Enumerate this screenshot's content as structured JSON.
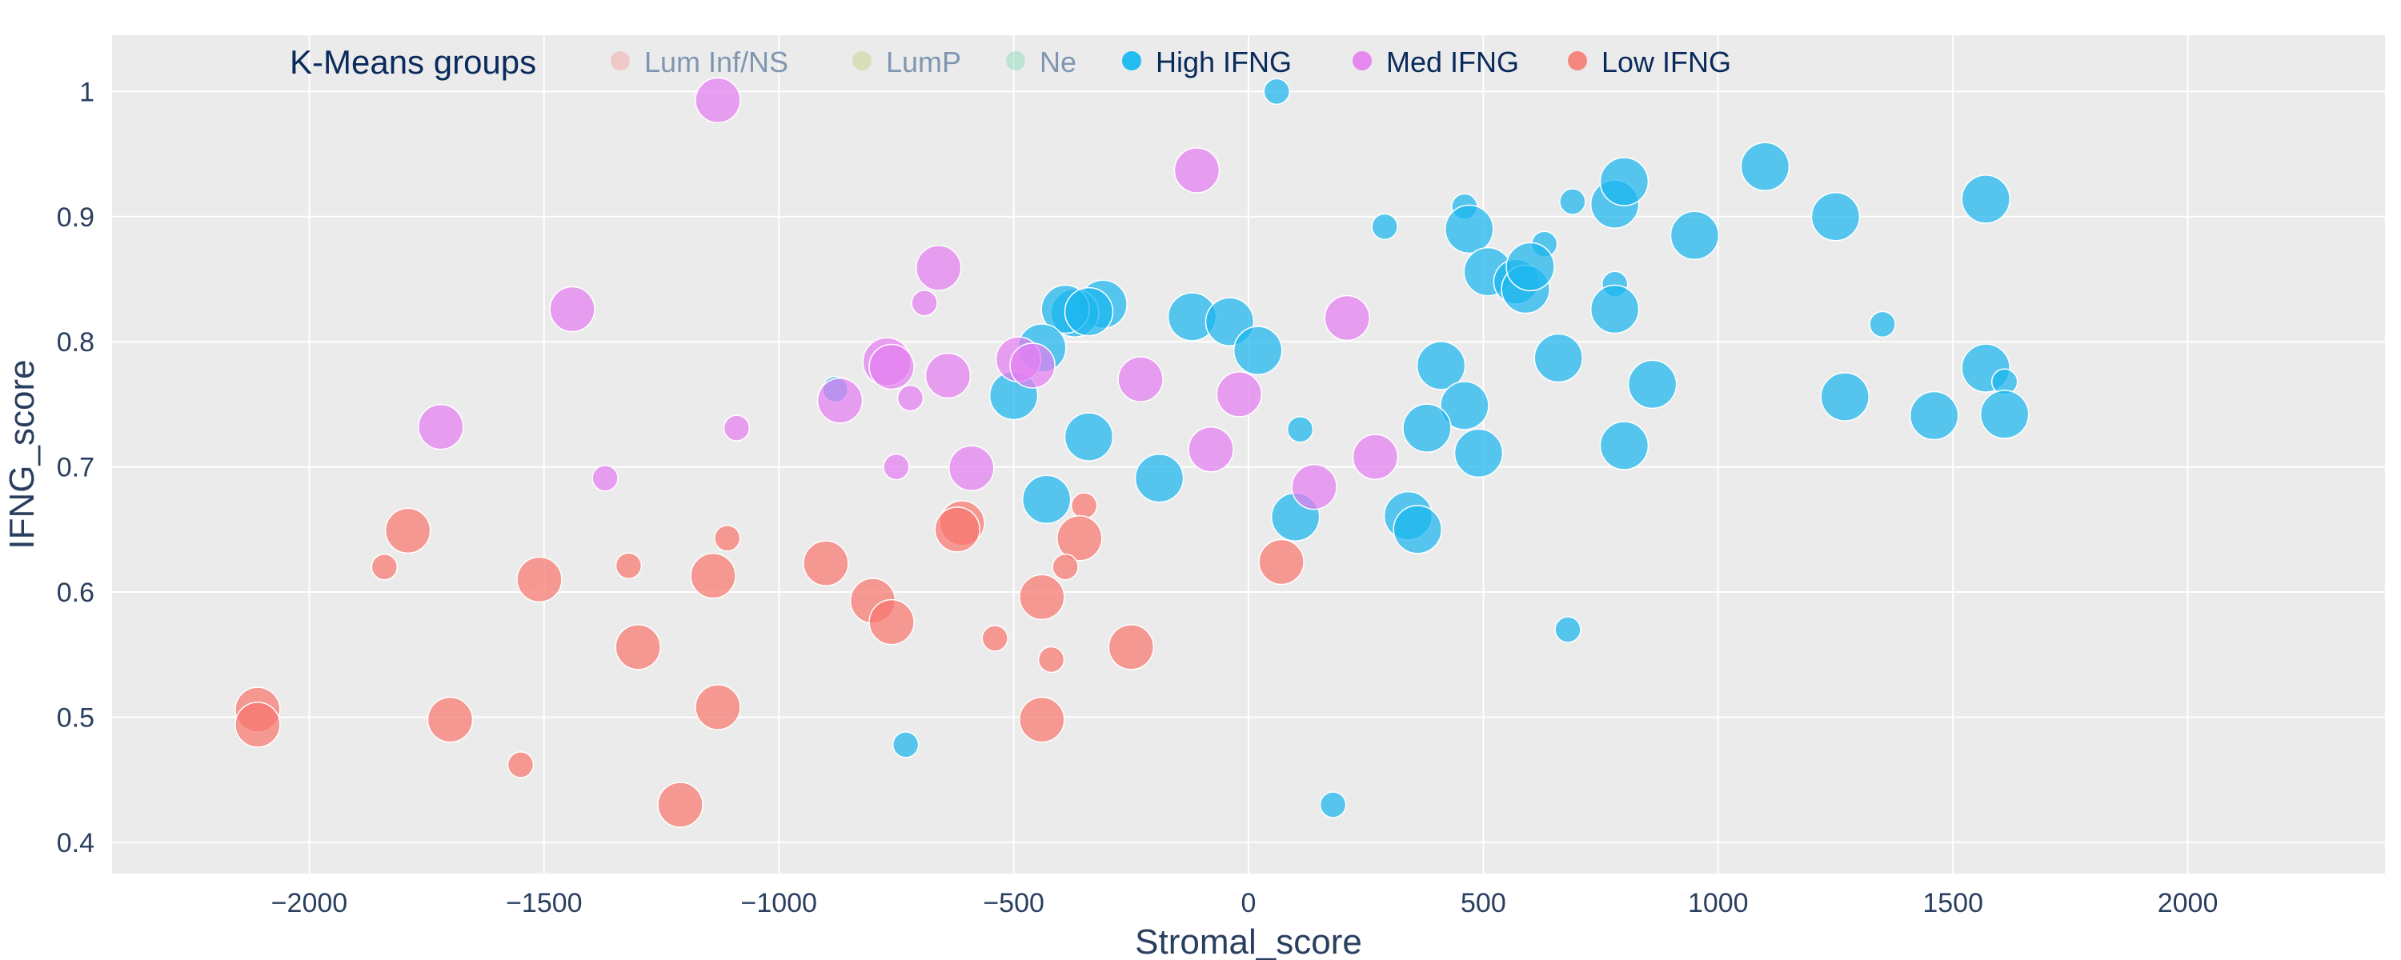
{
  "chart_data": {
    "type": "scatter",
    "xlabel": "Stromal_score",
    "ylabel": "IFNG_score",
    "xlim": [
      -2420,
      2420
    ],
    "ylim": [
      0.375,
      1.045
    ],
    "xticks": [
      -2000,
      -1500,
      -1000,
      -500,
      0,
      500,
      1000,
      1500,
      2000
    ],
    "xtick_labels": [
      "−2000",
      "−1500",
      "−1000",
      "−500",
      "0",
      "500",
      "1000",
      "1500",
      "2000"
    ],
    "yticks": [
      0.4,
      0.5,
      0.6,
      0.7,
      0.8,
      0.9,
      1
    ],
    "ytick_labels": [
      "0.4",
      "0.5",
      "0.6",
      "0.7",
      "0.8",
      "0.9",
      "1"
    ],
    "grid": true,
    "legend": {
      "title": "K-Means groups",
      "placement": "top-left",
      "items": [
        {
          "label": "Lum Inf/NS",
          "color": "#f4a6a6",
          "active": false
        },
        {
          "label": "LumP",
          "color": "#c9cf8a",
          "active": false
        },
        {
          "label": "Ne",
          "color": "#8fdcc0",
          "active": false
        },
        {
          "label": "High IFNG",
          "color": "#00b4f0",
          "active": true
        },
        {
          "label": "Med IFNG",
          "color": "#e478ee",
          "active": true
        },
        {
          "label": "Low IFNG",
          "color": "#f7766c",
          "active": true
        }
      ]
    },
    "series": [
      {
        "name": "High IFNG",
        "color": "#1ab5ee",
        "points": [
          {
            "x": 60,
            "y": 1.0,
            "size": "s"
          },
          {
            "x": 290,
            "y": 0.892,
            "size": "s"
          },
          {
            "x": 460,
            "y": 0.908,
            "size": "s"
          },
          {
            "x": 470,
            "y": 0.89,
            "size": "l"
          },
          {
            "x": 690,
            "y": 0.912,
            "size": "s"
          },
          {
            "x": 780,
            "y": 0.91,
            "size": "l"
          },
          {
            "x": 800,
            "y": 0.928,
            "size": "l"
          },
          {
            "x": 1100,
            "y": 0.94,
            "size": "l"
          },
          {
            "x": 1250,
            "y": 0.9,
            "size": "l"
          },
          {
            "x": 1570,
            "y": 0.914,
            "size": "l"
          },
          {
            "x": 950,
            "y": 0.885,
            "size": "l"
          },
          {
            "x": 630,
            "y": 0.878,
            "size": "s"
          },
          {
            "x": 510,
            "y": 0.856,
            "size": "l"
          },
          {
            "x": 570,
            "y": 0.848,
            "size": "m"
          },
          {
            "x": 590,
            "y": 0.842,
            "size": "l"
          },
          {
            "x": 600,
            "y": 0.86,
            "size": "l"
          },
          {
            "x": 780,
            "y": 0.846,
            "size": "s"
          },
          {
            "x": 780,
            "y": 0.826,
            "size": "l"
          },
          {
            "x": 1350,
            "y": 0.814,
            "size": "s"
          },
          {
            "x": -310,
            "y": 0.83,
            "size": "l"
          },
          {
            "x": -370,
            "y": 0.823,
            "size": "l"
          },
          {
            "x": -390,
            "y": 0.826,
            "size": "l"
          },
          {
            "x": -340,
            "y": 0.824,
            "size": "l"
          },
          {
            "x": -120,
            "y": 0.82,
            "size": "l"
          },
          {
            "x": -40,
            "y": 0.816,
            "size": "l"
          },
          {
            "x": -440,
            "y": 0.795,
            "size": "l"
          },
          {
            "x": 20,
            "y": 0.793,
            "size": "l"
          },
          {
            "x": 660,
            "y": 0.787,
            "size": "l"
          },
          {
            "x": 410,
            "y": 0.781,
            "size": "l"
          },
          {
            "x": 1570,
            "y": 0.779,
            "size": "l"
          },
          {
            "x": 1610,
            "y": 0.768,
            "size": "s"
          },
          {
            "x": 860,
            "y": 0.766,
            "size": "l"
          },
          {
            "x": -880,
            "y": 0.762,
            "size": "s"
          },
          {
            "x": -500,
            "y": 0.757,
            "size": "l"
          },
          {
            "x": 1270,
            "y": 0.756,
            "size": "l"
          },
          {
            "x": 460,
            "y": 0.749,
            "size": "l"
          },
          {
            "x": 1460,
            "y": 0.741,
            "size": "l"
          },
          {
            "x": 1610,
            "y": 0.742,
            "size": "l"
          },
          {
            "x": 380,
            "y": 0.731,
            "size": "l"
          },
          {
            "x": 110,
            "y": 0.73,
            "size": "s"
          },
          {
            "x": -340,
            "y": 0.724,
            "size": "l"
          },
          {
            "x": 800,
            "y": 0.717,
            "size": "l"
          },
          {
            "x": 490,
            "y": 0.711,
            "size": "l"
          },
          {
            "x": -190,
            "y": 0.691,
            "size": "l"
          },
          {
            "x": -430,
            "y": 0.674,
            "size": "l"
          },
          {
            "x": 100,
            "y": 0.66,
            "size": "l"
          },
          {
            "x": 340,
            "y": 0.661,
            "size": "l"
          },
          {
            "x": 360,
            "y": 0.65,
            "size": "l"
          },
          {
            "x": 680,
            "y": 0.57,
            "size": "s"
          },
          {
            "x": -730,
            "y": 0.478,
            "size": "s"
          },
          {
            "x": 180,
            "y": 0.43,
            "size": "s"
          }
        ]
      },
      {
        "name": "Med IFNG",
        "color": "#e47ef0",
        "points": [
          {
            "x": -1130,
            "y": 0.993,
            "size": "m"
          },
          {
            "x": -110,
            "y": 0.937,
            "size": "m"
          },
          {
            "x": -660,
            "y": 0.859,
            "size": "m"
          },
          {
            "x": -1440,
            "y": 0.826,
            "size": "m"
          },
          {
            "x": -690,
            "y": 0.831,
            "size": "s"
          },
          {
            "x": 210,
            "y": 0.819,
            "size": "m"
          },
          {
            "x": -770,
            "y": 0.784,
            "size": "l"
          },
          {
            "x": -760,
            "y": 0.78,
            "size": "m"
          },
          {
            "x": -490,
            "y": 0.786,
            "size": "m"
          },
          {
            "x": -460,
            "y": 0.781,
            "size": "m"
          },
          {
            "x": -640,
            "y": 0.773,
            "size": "m"
          },
          {
            "x": -230,
            "y": 0.77,
            "size": "m"
          },
          {
            "x": -20,
            "y": 0.758,
            "size": "m"
          },
          {
            "x": -720,
            "y": 0.755,
            "size": "s"
          },
          {
            "x": -870,
            "y": 0.753,
            "size": "m"
          },
          {
            "x": -1720,
            "y": 0.732,
            "size": "m"
          },
          {
            "x": -1090,
            "y": 0.731,
            "size": "s"
          },
          {
            "x": -80,
            "y": 0.714,
            "size": "m"
          },
          {
            "x": 270,
            "y": 0.708,
            "size": "m"
          },
          {
            "x": -590,
            "y": 0.699,
            "size": "m"
          },
          {
            "x": -750,
            "y": 0.7,
            "size": "s"
          },
          {
            "x": -1370,
            "y": 0.691,
            "size": "s"
          },
          {
            "x": 140,
            "y": 0.684,
            "size": "m"
          }
        ]
      },
      {
        "name": "Low IFNG",
        "color": "#f7776d",
        "points": [
          {
            "x": -350,
            "y": 0.669,
            "size": "s"
          },
          {
            "x": -610,
            "y": 0.655,
            "size": "m"
          },
          {
            "x": -620,
            "y": 0.65,
            "size": "m"
          },
          {
            "x": -1790,
            "y": 0.649,
            "size": "m"
          },
          {
            "x": -1110,
            "y": 0.643,
            "size": "s"
          },
          {
            "x": -360,
            "y": 0.643,
            "size": "m"
          },
          {
            "x": 70,
            "y": 0.624,
            "size": "m"
          },
          {
            "x": -900,
            "y": 0.623,
            "size": "m"
          },
          {
            "x": -1840,
            "y": 0.62,
            "size": "s"
          },
          {
            "x": -1320,
            "y": 0.621,
            "size": "s"
          },
          {
            "x": -390,
            "y": 0.62,
            "size": "s"
          },
          {
            "x": -1140,
            "y": 0.613,
            "size": "m"
          },
          {
            "x": -1510,
            "y": 0.61,
            "size": "m"
          },
          {
            "x": -800,
            "y": 0.593,
            "size": "m"
          },
          {
            "x": -440,
            "y": 0.596,
            "size": "m"
          },
          {
            "x": -760,
            "y": 0.576,
            "size": "m"
          },
          {
            "x": -540,
            "y": 0.563,
            "size": "s"
          },
          {
            "x": -1300,
            "y": 0.556,
            "size": "m"
          },
          {
            "x": -250,
            "y": 0.556,
            "size": "m"
          },
          {
            "x": -420,
            "y": 0.546,
            "size": "s"
          },
          {
            "x": -1130,
            "y": 0.508,
            "size": "m"
          },
          {
            "x": -2110,
            "y": 0.506,
            "size": "m"
          },
          {
            "x": -1700,
            "y": 0.498,
            "size": "m"
          },
          {
            "x": -440,
            "y": 0.498,
            "size": "m"
          },
          {
            "x": -2110,
            "y": 0.494,
            "size": "m"
          },
          {
            "x": -1550,
            "y": 0.462,
            "size": "s"
          },
          {
            "x": -1210,
            "y": 0.43,
            "size": "m"
          }
        ]
      }
    ]
  }
}
